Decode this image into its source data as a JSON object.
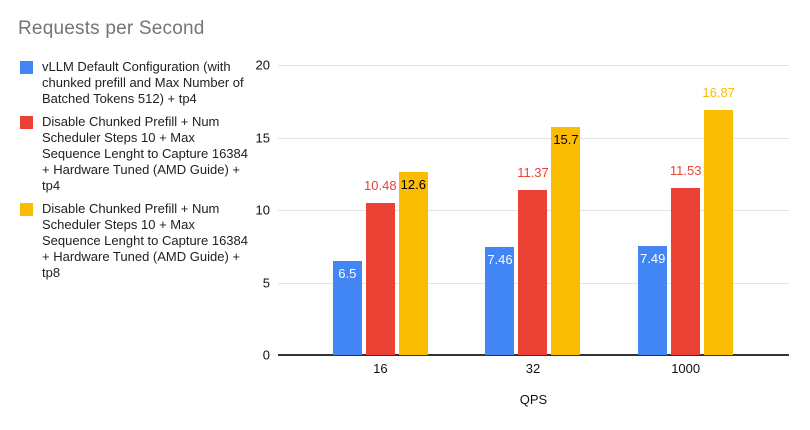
{
  "chart_data": {
    "type": "bar",
    "title": "Requests per Second",
    "xlabel": "QPS",
    "ylabel": "",
    "categories": [
      "16",
      "32",
      "1000"
    ],
    "ylim": [
      0,
      20
    ],
    "yticks": [
      0,
      5,
      10,
      15,
      20
    ],
    "grid": true,
    "legend_position": "left",
    "colors": {
      "blue": "#4285F4",
      "red": "#EA4335",
      "yellow": "#FBBC04"
    },
    "series": [
      {
        "name": "vLLM Default Configuration (with chunked prefill and Max Number of Batched Tokens 512) + tp4",
        "color": "#4285F4",
        "values": [
          6.5,
          7.46,
          7.49
        ],
        "labels": [
          {
            "text": "6.5",
            "placement": "inside",
            "color": "#ffffff"
          },
          {
            "text": "7.46",
            "placement": "inside",
            "color": "#ffffff"
          },
          {
            "text": "7.49",
            "placement": "inside",
            "color": "#ffffff"
          }
        ]
      },
      {
        "name": "Disable Chunked Prefill + Num Scheduler Steps 10 + Max Sequence Lenght to Capture 16384 + Hardware Tuned (AMD Guide) + tp4",
        "color": "#EA4335",
        "values": [
          10.48,
          11.37,
          11.53
        ],
        "labels": [
          {
            "text": "10.48",
            "placement": "above",
            "color": "#EA4335"
          },
          {
            "text": "11.37",
            "placement": "above",
            "color": "#EA4335"
          },
          {
            "text": "11.53",
            "placement": "above",
            "color": "#EA4335"
          }
        ]
      },
      {
        "name": "Disable Chunked Prefill + Num Scheduler Steps 10 + Max Sequence Lenght to Capture 16384 + Hardware Tuned (AMD Guide) + tp8",
        "color": "#FBBC04",
        "values": [
          12.6,
          15.7,
          16.87
        ],
        "labels": [
          {
            "text": "12.6",
            "placement": "inside",
            "color": "#000000"
          },
          {
            "text": "15.7",
            "placement": "inside",
            "color": "#000000"
          },
          {
            "text": "16.87",
            "placement": "above",
            "color": "#FBBC04"
          }
        ]
      }
    ]
  }
}
